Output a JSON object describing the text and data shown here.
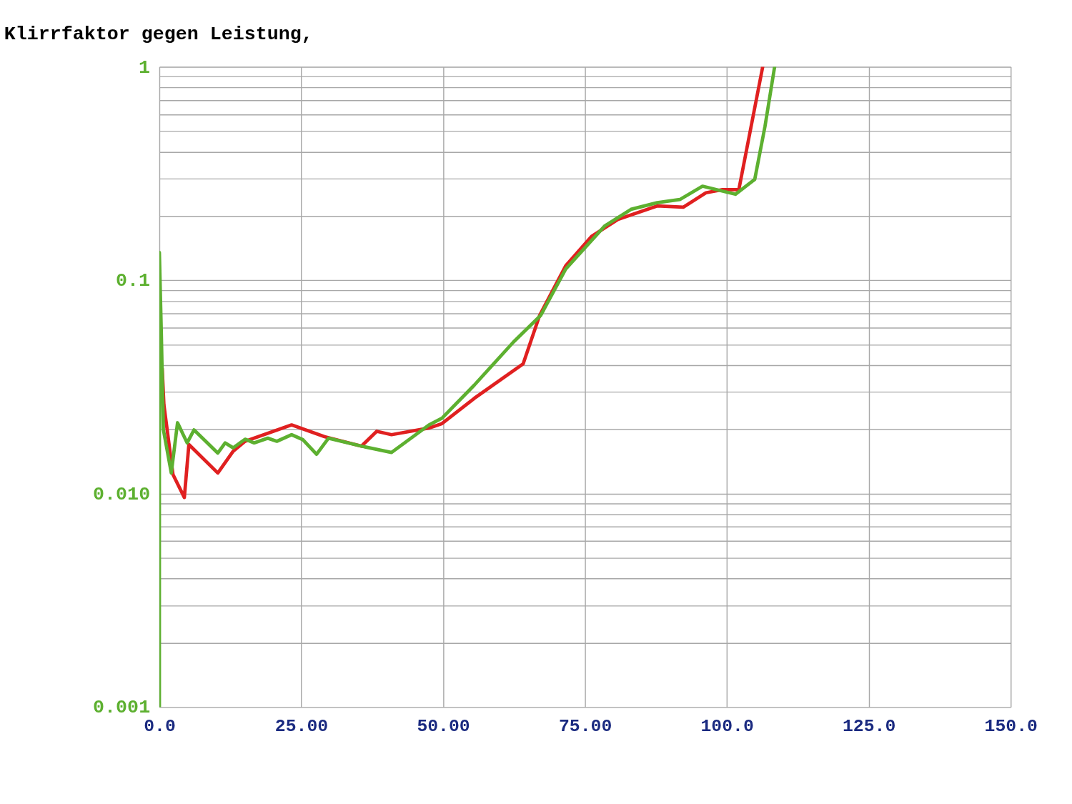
{
  "chart_data": {
    "type": "line",
    "title": "Klirrfaktor gegen Leistung,",
    "log": "y",
    "grid": true,
    "marker": "none",
    "line_style": "solid",
    "xlim": [
      0,
      150
    ],
    "ylim": [
      0.001,
      1
    ],
    "xticks": [
      {
        "value": 0,
        "label": "0.0"
      },
      {
        "value": 25,
        "label": "25.00"
      },
      {
        "value": 50,
        "label": "50.00"
      },
      {
        "value": 75,
        "label": "75.00"
      },
      {
        "value": 100,
        "label": "100.0"
      },
      {
        "value": 125,
        "label": "125.0"
      },
      {
        "value": 150,
        "label": "150.0"
      }
    ],
    "yticks": [
      1,
      0.1,
      {
        "value": 0.01,
        "label": "0.010"
      },
      0.001,
      {
        "value": 0.002,
        "label": null
      },
      {
        "value": 0.003,
        "label": null
      },
      {
        "value": 0.004,
        "label": null
      },
      {
        "value": 0.005,
        "label": null
      },
      {
        "value": 0.006,
        "label": null
      },
      {
        "value": 0.007,
        "label": null
      },
      {
        "value": 0.008,
        "label": null
      },
      {
        "value": 0.009,
        "label": null
      },
      {
        "value": 0.02,
        "label": null
      },
      {
        "value": 0.03,
        "label": null
      },
      {
        "value": 0.04,
        "label": null
      },
      {
        "value": 0.05,
        "label": null
      },
      {
        "value": 0.06,
        "label": null
      },
      {
        "value": 0.07,
        "label": null
      },
      {
        "value": 0.08,
        "label": null
      },
      {
        "value": 0.09,
        "label": null
      },
      {
        "value": 0.2,
        "label": null
      },
      {
        "value": 0.3,
        "label": null
      },
      {
        "value": 0.4,
        "label": null
      },
      {
        "value": 0.5,
        "label": null
      },
      {
        "value": 0.6,
        "label": null
      },
      {
        "value": 0.7,
        "label": null
      },
      {
        "value": 0.8,
        "label": null
      },
      {
        "value": 0.9,
        "label": null
      }
    ],
    "series": [
      {
        "color": "#e02020",
        "x": [
          0.5,
          0.8,
          2.4,
          4.4,
          5.2,
          10.3,
          13.0,
          15.1,
          23.3,
          29.1,
          35.6,
          38.3,
          40.9,
          47.5,
          49.8,
          55.5,
          64.1,
          67.0,
          71.6,
          76.2,
          80.8,
          87.7,
          92.3,
          96.3,
          99.2,
          102.1,
          106.3
        ],
        "values": [
          0.0386,
          0.0261,
          0.0123,
          0.0096,
          0.017,
          0.0125,
          0.0158,
          0.0176,
          0.021,
          0.0185,
          0.0167,
          0.0196,
          0.0189,
          0.0203,
          0.0213,
          0.028,
          0.0406,
          0.0685,
          0.117,
          0.161,
          0.193,
          0.223,
          0.22,
          0.257,
          0.266,
          0.266,
          1.0
        ]
      },
      {
        "color": "#5db030",
        "x": [
          0,
          0,
          0.34,
          0.7,
          2.1,
          3.2,
          4.9,
          6.1,
          10.3,
          11.6,
          13.0,
          15.1,
          16.7,
          19.1,
          20.7,
          23.3,
          25.3,
          27.7,
          29.8,
          35.6,
          40.9,
          47.5,
          49.8,
          55.5,
          62.4,
          67.2,
          71.6,
          78.5,
          83.1,
          87.7,
          91.7,
          95.7,
          101.5,
          104.9,
          106.7,
          108.4
        ],
        "values": [
          0.001,
          0.135,
          0.057,
          0.02,
          0.0125,
          0.0215,
          0.0173,
          0.0199,
          0.0155,
          0.0173,
          0.0164,
          0.018,
          0.0173,
          0.0182,
          0.0176,
          0.0189,
          0.0179,
          0.0153,
          0.0182,
          0.0167,
          0.0156,
          0.021,
          0.0226,
          0.0323,
          0.0514,
          0.0685,
          0.113,
          0.18,
          0.215,
          0.231,
          0.239,
          0.276,
          0.253,
          0.297,
          0.525,
          1.0
        ]
      }
    ]
  }
}
